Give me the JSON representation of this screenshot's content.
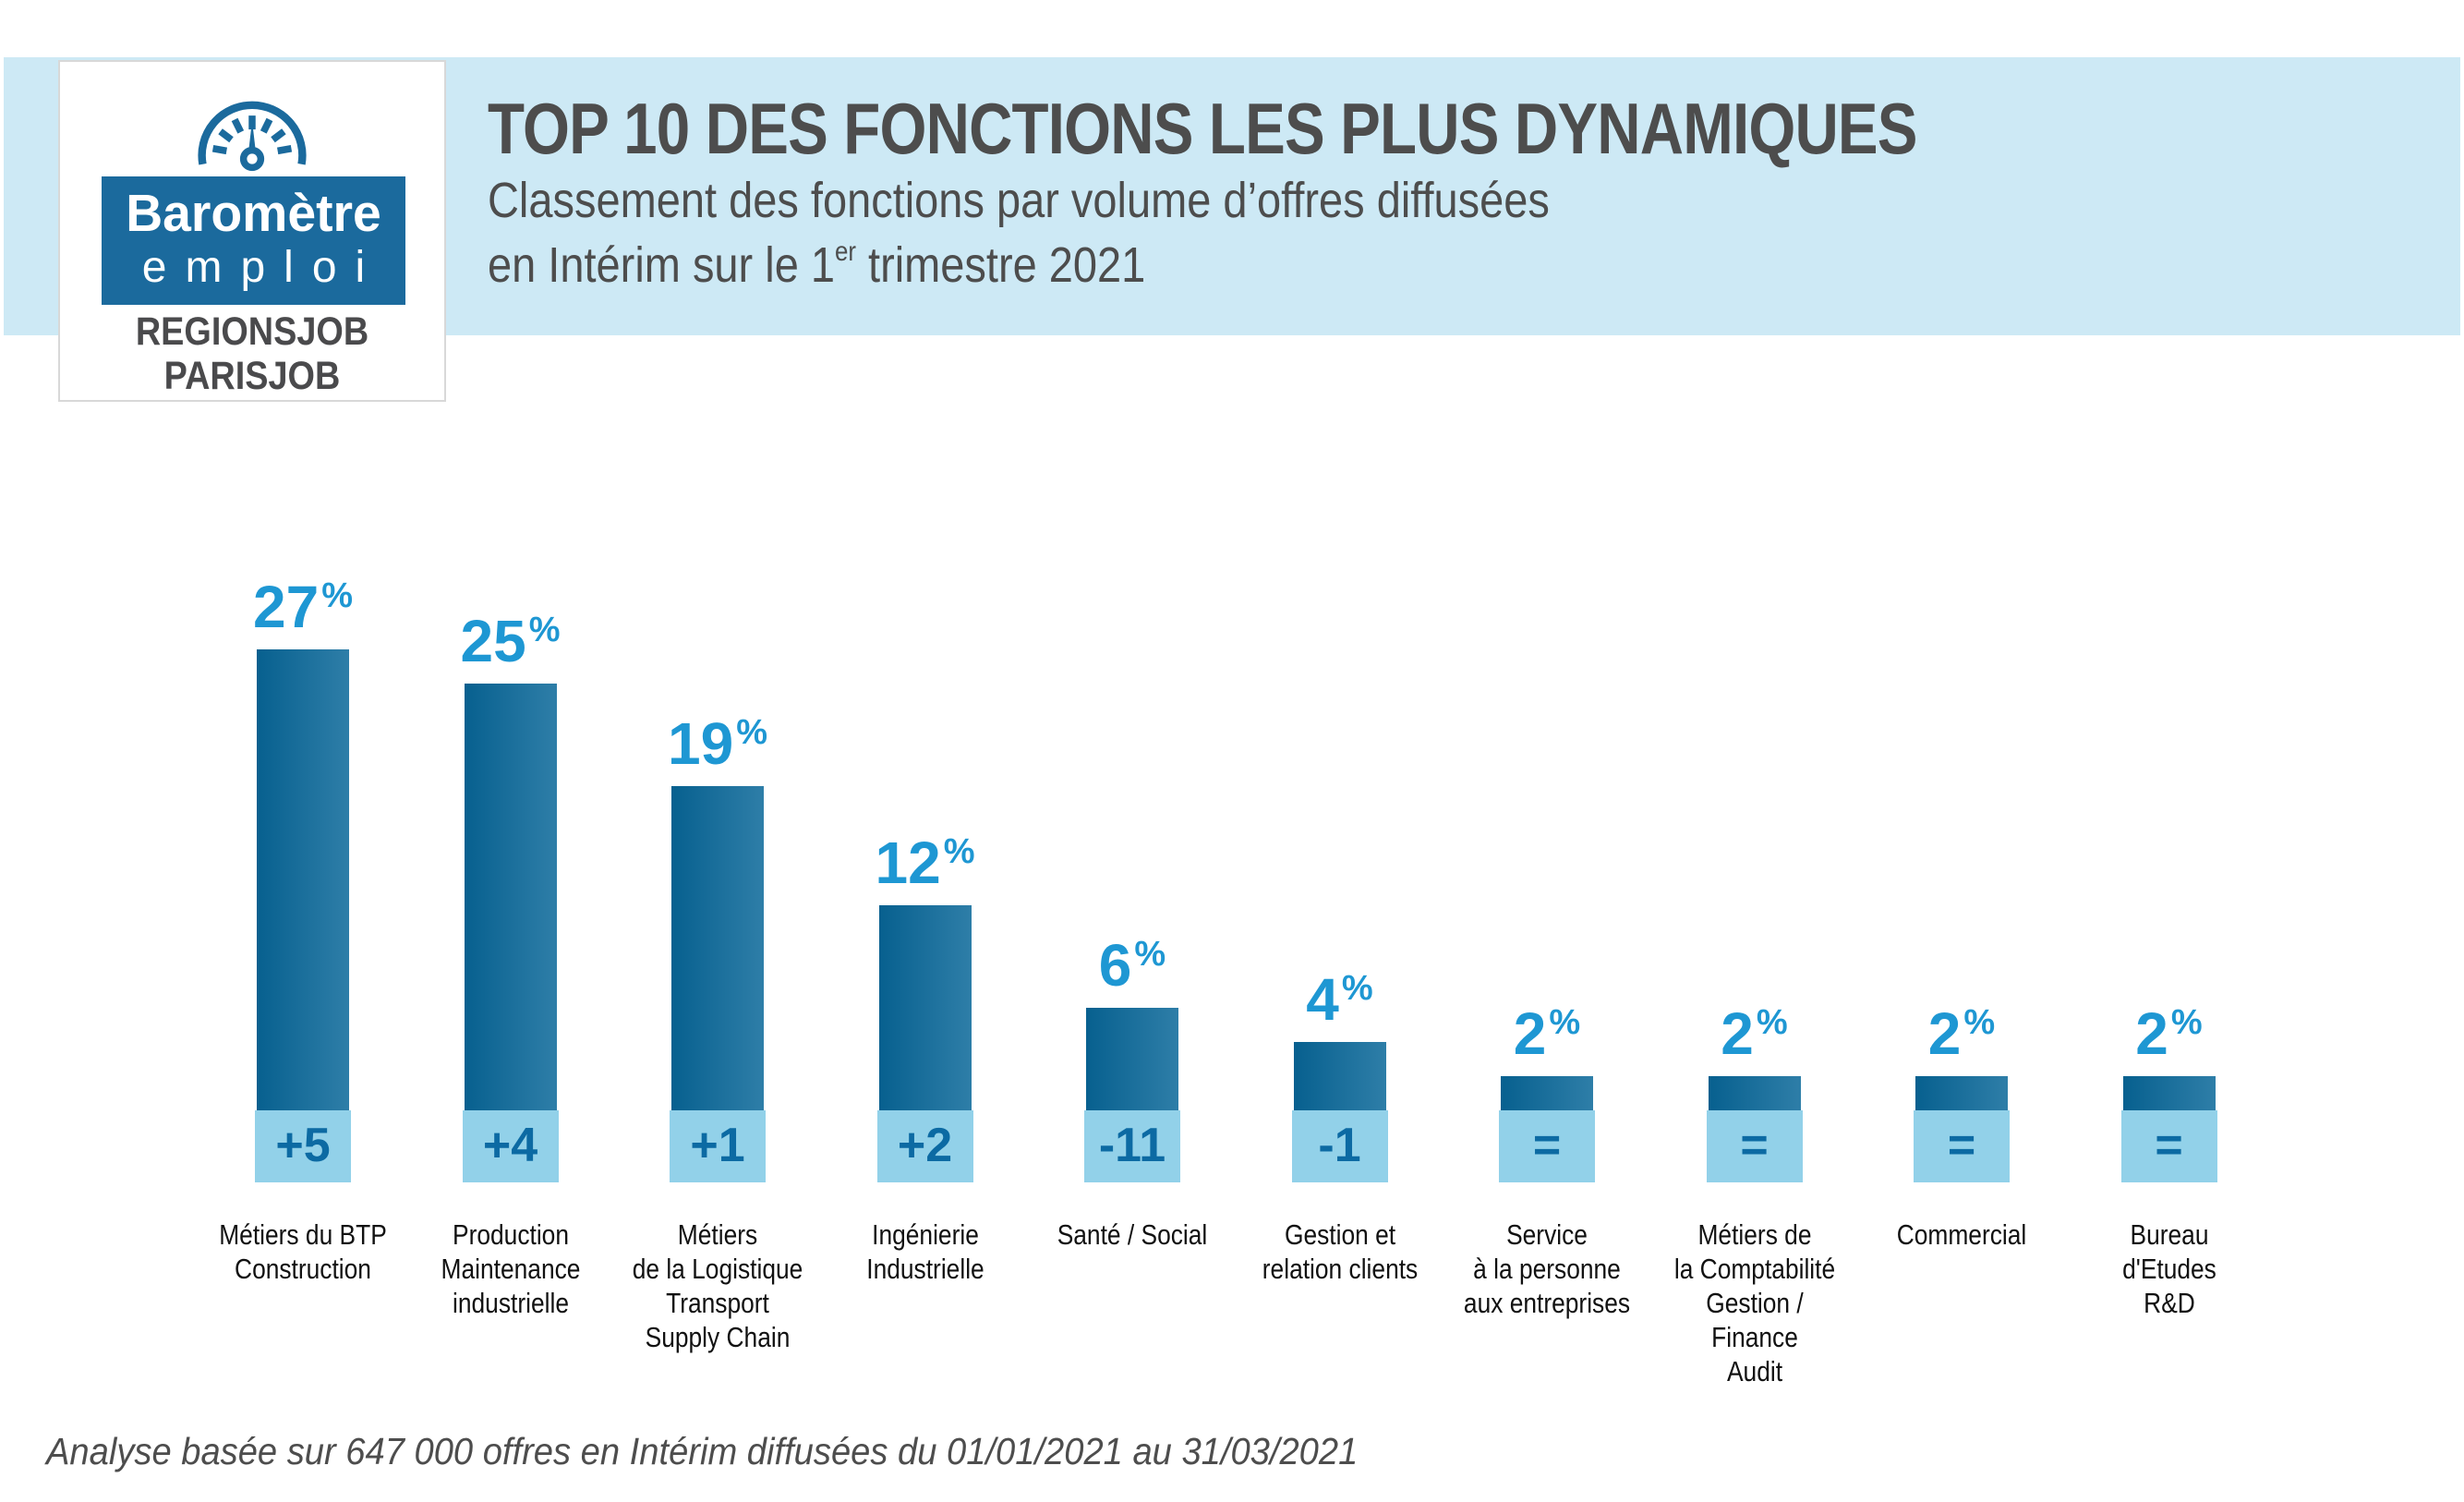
{
  "logo": {
    "line1": "Baromètre",
    "line2": "emploi",
    "line3": "REGIONSJOB",
    "line4": "PARISJOB"
  },
  "header": {
    "title": "TOP 10 DES FONCTIONS LES PLUS DYNAMIQUES",
    "subtitle1": "Classement des fonctions par volume d’offres diffusées",
    "subtitle2_prefix": "en Intérim sur le 1",
    "subtitle2_sup": "er",
    "subtitle2_suffix": " trimestre 2021"
  },
  "footer": {
    "note": "Analyse basée sur 647 000 offres en Intérim diffusées du 01/01/2021 au 31/03/2021"
  },
  "colors": {
    "band": "#cde9f5",
    "bar_gradient_left": "#07608f",
    "bar_gradient_right": "#2e7ea8",
    "value_text": "#1e97d3",
    "badge_bg": "#92d1e9",
    "badge_text": "#0c6aa3",
    "title_text": "#4d4d4d",
    "category_text": "#111111",
    "logo_blue": "#1b6a9d",
    "logo_gray": "#4a4a4c"
  },
  "chart_data": {
    "type": "bar",
    "title": "TOP 10 DES FONCTIONS LES PLUS DYNAMIQUES",
    "subtitle": "Classement des fonctions par volume d’offres diffusées en Intérim sur le 1er trimestre 2021",
    "unit": "%",
    "categories": [
      [
        "Métiers du BTP",
        "Construction"
      ],
      [
        "Production",
        "Maintenance",
        "industrielle"
      ],
      [
        "Métiers",
        "de la Logistique",
        "Transport",
        "Supply Chain"
      ],
      [
        "Ingénierie",
        "Industrielle"
      ],
      [
        "Santé / Social"
      ],
      [
        "Gestion et",
        "relation clients"
      ],
      [
        "Service",
        "à la personne",
        "aux entreprises"
      ],
      [
        "Métiers de",
        "la Comptabilité",
        "Gestion / Finance",
        "Audit"
      ],
      [
        "Commercial"
      ],
      [
        "Bureau",
        "d'Etudes",
        "R&D"
      ]
    ],
    "values": [
      27,
      25,
      19,
      12,
      6,
      4,
      2,
      2,
      2,
      2
    ],
    "deltas": [
      "+5",
      "+4",
      "+1",
      "+2",
      "-11",
      "-1",
      "=",
      "=",
      "=",
      "="
    ],
    "ylim": [
      0,
      30
    ],
    "legend": false,
    "grid": false,
    "note": "Analyse basée sur 647 000 offres en Intérim diffusées du 01/01/2021 au 31/03/2021"
  }
}
